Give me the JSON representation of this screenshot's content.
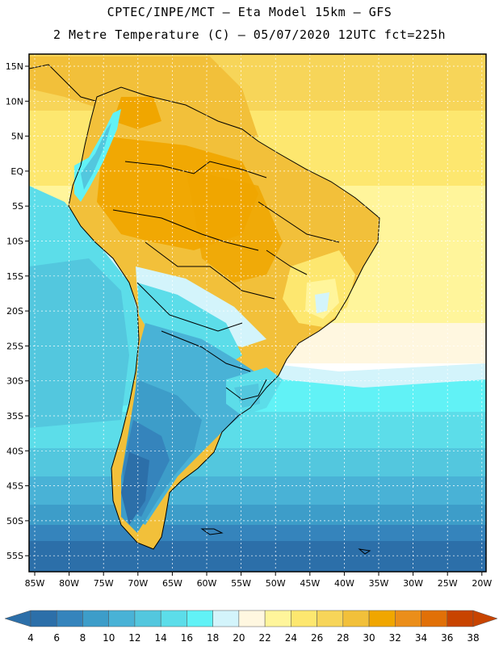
{
  "header": {
    "line1": "CPTEC/INPE/MCT –  Eta Model 15km – GFS",
    "line2": "2 Metre Temperature (C) – 05/07/2020 12UTC fct=225h"
  },
  "map": {
    "lon_labels": [
      "85W",
      "80W",
      "75W",
      "70W",
      "65W",
      "60W",
      "55W",
      "50W",
      "45W",
      "40W",
      "35W",
      "30W",
      "25W",
      "20W"
    ],
    "lat_labels": [
      "15N",
      "10N",
      "5N",
      "EQ",
      "5S",
      "10S",
      "15S",
      "20S",
      "25S",
      "30S",
      "35S",
      "40S",
      "45S",
      "50S",
      "55S"
    ],
    "lon_range": [
      -86,
      -19
    ],
    "lat_range": [
      17,
      -58
    ],
    "variable": "2 Metre Temperature",
    "units": "C"
  },
  "colorbar": {
    "labels": [
      "4",
      "6",
      "8",
      "10",
      "12",
      "14",
      "16",
      "18",
      "20",
      "22",
      "24",
      "26",
      "28",
      "30",
      "32",
      "34",
      "36",
      "38"
    ],
    "colors": [
      "#2c6fa9",
      "#3584bc",
      "#3d9dc9",
      "#49b2d6",
      "#53c7de",
      "#5cdde9",
      "#61f2f6",
      "#d3f4fb",
      "#fff7e0",
      "#fff59b",
      "#fde76f",
      "#f7d559",
      "#f2c03a",
      "#f0a600",
      "#eb8e1a",
      "#e17007",
      "#c84400"
    ],
    "low_arrow_color": "#2c6fa9",
    "high_arrow_color": "#c84400"
  }
}
